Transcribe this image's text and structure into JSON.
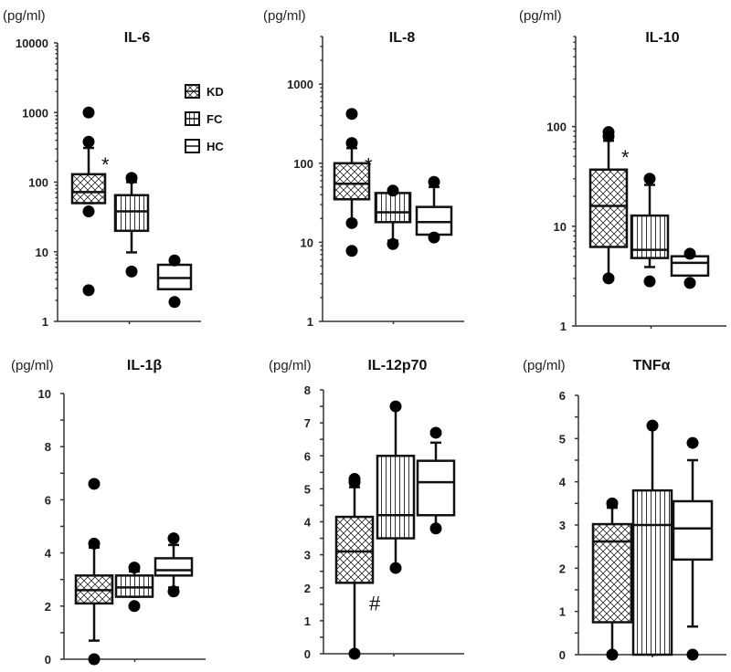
{
  "chart_data": [
    {
      "type": "box",
      "title": "IL-6",
      "ylabel": "(pg/ml)",
      "yscale": "log",
      "ylim": [
        1,
        10000
      ],
      "yticks": [
        "1",
        "10",
        "100",
        "1000",
        "10000"
      ],
      "annotation": "*",
      "annotation_group": "KD",
      "groups": [
        {
          "name": "KD",
          "pattern": "crosshatch",
          "q1": 50,
          "median": 72,
          "q3": 130,
          "whisker_low": 50,
          "whisker_high": 310,
          "outliers": [
            1000,
            380,
            38,
            2.8
          ]
        },
        {
          "name": "FC",
          "pattern": "vertical",
          "q1": 20,
          "median": 38,
          "q3": 65,
          "whisker_low": 9.8,
          "whisker_high": 100,
          "outliers": [
            115,
            5.2
          ]
        },
        {
          "name": "HC",
          "pattern": "open",
          "q1": 2.9,
          "median": 4.2,
          "q3": 6.5,
          "whisker_low": 2.9,
          "whisker_high": 6.5,
          "outliers": [
            7.5,
            1.9
          ]
        }
      ]
    },
    {
      "type": "box",
      "title": "IL-8",
      "ylabel": "(pg/ml)",
      "yscale": "log",
      "ylim": [
        1,
        4000
      ],
      "yticks": [
        "1",
        "10",
        "100",
        "1000"
      ],
      "annotation": "*",
      "annotation_group": "KD",
      "groups": [
        {
          "name": "KD",
          "pattern": "crosshatch",
          "q1": 35,
          "median": 55,
          "q3": 100,
          "whisker_low": 18,
          "whisker_high": 155,
          "outliers": [
            420,
            180,
            17.5,
            7.8
          ]
        },
        {
          "name": "FC",
          "pattern": "vertical",
          "q1": 18,
          "median": 24,
          "q3": 42,
          "whisker_low": 10.5,
          "whisker_high": 42,
          "outliers": [
            45,
            9.5
          ]
        },
        {
          "name": "HC",
          "pattern": "open",
          "q1": 12.5,
          "median": 18,
          "q3": 28,
          "whisker_low": 12.5,
          "whisker_high": 50,
          "outliers": [
            58,
            11.5
          ]
        }
      ]
    },
    {
      "type": "box",
      "title": "IL-10",
      "ylabel": "(pg/ml)",
      "yscale": "log",
      "ylim": [
        1,
        800
      ],
      "yticks": [
        "1",
        "10",
        "100"
      ],
      "annotation": "*",
      "annotation_group": "KD",
      "groups": [
        {
          "name": "KD",
          "pattern": "crosshatch",
          "q1": 6.2,
          "median": 16,
          "q3": 37,
          "whisker_low": 3,
          "whisker_high": 72,
          "outliers": [
            88,
            80,
            3
          ]
        },
        {
          "name": "FC",
          "pattern": "vertical",
          "q1": 4.8,
          "median": 5.8,
          "q3": 12.8,
          "whisker_low": 3.9,
          "whisker_high": 26,
          "outliers": [
            30,
            2.8
          ]
        },
        {
          "name": "HC",
          "pattern": "open",
          "q1": 3.2,
          "median": 4.3,
          "q3": 5,
          "whisker_low": 3.2,
          "whisker_high": 5,
          "outliers": [
            5.3,
            2.7
          ]
        }
      ]
    },
    {
      "type": "box",
      "title": "IL-1β",
      "ylabel": "(pg/ml)",
      "yscale": "linear",
      "ylim": [
        0,
        10
      ],
      "yticks": [
        "0",
        "2",
        "4",
        "6",
        "8",
        "10"
      ],
      "annotation": "",
      "annotation_group": "",
      "groups": [
        {
          "name": "KD",
          "pattern": "crosshatch",
          "q1": 2.1,
          "median": 2.6,
          "q3": 3.15,
          "whisker_low": 0.7,
          "whisker_high": 4.2,
          "outliers": [
            6.6,
            4.35,
            0
          ]
        },
        {
          "name": "FC",
          "pattern": "vertical",
          "q1": 2.35,
          "median": 2.7,
          "q3": 3.15,
          "whisker_low": 2.35,
          "whisker_high": 3.3,
          "outliers": [
            3.45,
            2.0
          ]
        },
        {
          "name": "HC",
          "pattern": "open",
          "q1": 3.15,
          "median": 3.35,
          "q3": 3.8,
          "whisker_low": 2.7,
          "whisker_high": 4.3,
          "outliers": [
            4.55,
            2.55
          ]
        }
      ]
    },
    {
      "type": "box",
      "title": "IL-12p70",
      "ylabel": "(pg/ml)",
      "yscale": "linear",
      "ylim": [
        0,
        8
      ],
      "yticks": [
        "0",
        "1",
        "2",
        "3",
        "4",
        "5",
        "6",
        "7",
        "8"
      ],
      "annotation": "#",
      "annotation_group": "KD",
      "groups": [
        {
          "name": "KD",
          "pattern": "crosshatch",
          "q1": 2.15,
          "median": 3.1,
          "q3": 4.15,
          "whisker_low": 0,
          "whisker_high": 5.05,
          "outliers": [
            5.3,
            5.2,
            0
          ]
        },
        {
          "name": "FC",
          "pattern": "vertical",
          "q1": 3.5,
          "median": 4.2,
          "q3": 6.0,
          "whisker_low": 2.6,
          "whisker_high": 7.5,
          "outliers": [
            7.5,
            2.6
          ]
        },
        {
          "name": "HC",
          "pattern": "open",
          "q1": 4.2,
          "median": 5.2,
          "q3": 5.85,
          "whisker_low": 3.8,
          "whisker_high": 6.4,
          "outliers": [
            6.7,
            3.8
          ]
        }
      ]
    },
    {
      "type": "box",
      "title": "TNFα",
      "ylabel": "(pg/ml)",
      "yscale": "linear",
      "ylim": [
        0,
        6
      ],
      "yticks": [
        "0",
        "1",
        "2",
        "3",
        "4",
        "5",
        "6"
      ],
      "annotation": "",
      "annotation_group": "",
      "groups": [
        {
          "name": "KD",
          "pattern": "crosshatch",
          "q1": 0.75,
          "median": 2.62,
          "q3": 3.02,
          "whisker_low": 0,
          "whisker_high": 3.4,
          "outliers": [
            3.5,
            0
          ]
        },
        {
          "name": "FC",
          "pattern": "vertical",
          "q1": 0,
          "median": 3.0,
          "q3": 3.8,
          "whisker_low": 0,
          "whisker_high": 5.3,
          "outliers": [
            5.3
          ]
        },
        {
          "name": "HC",
          "pattern": "open",
          "q1": 2.2,
          "median": 2.92,
          "q3": 3.55,
          "whisker_low": 0.65,
          "whisker_high": 4.5,
          "outliers": [
            4.9,
            0
          ]
        }
      ]
    }
  ],
  "legend": {
    "placement": "top-left panel, right side",
    "items": [
      {
        "label": "KD",
        "pattern": "crosshatch"
      },
      {
        "label": "FC",
        "pattern": "vertical"
      },
      {
        "label": "HC",
        "pattern": "open"
      }
    ]
  }
}
